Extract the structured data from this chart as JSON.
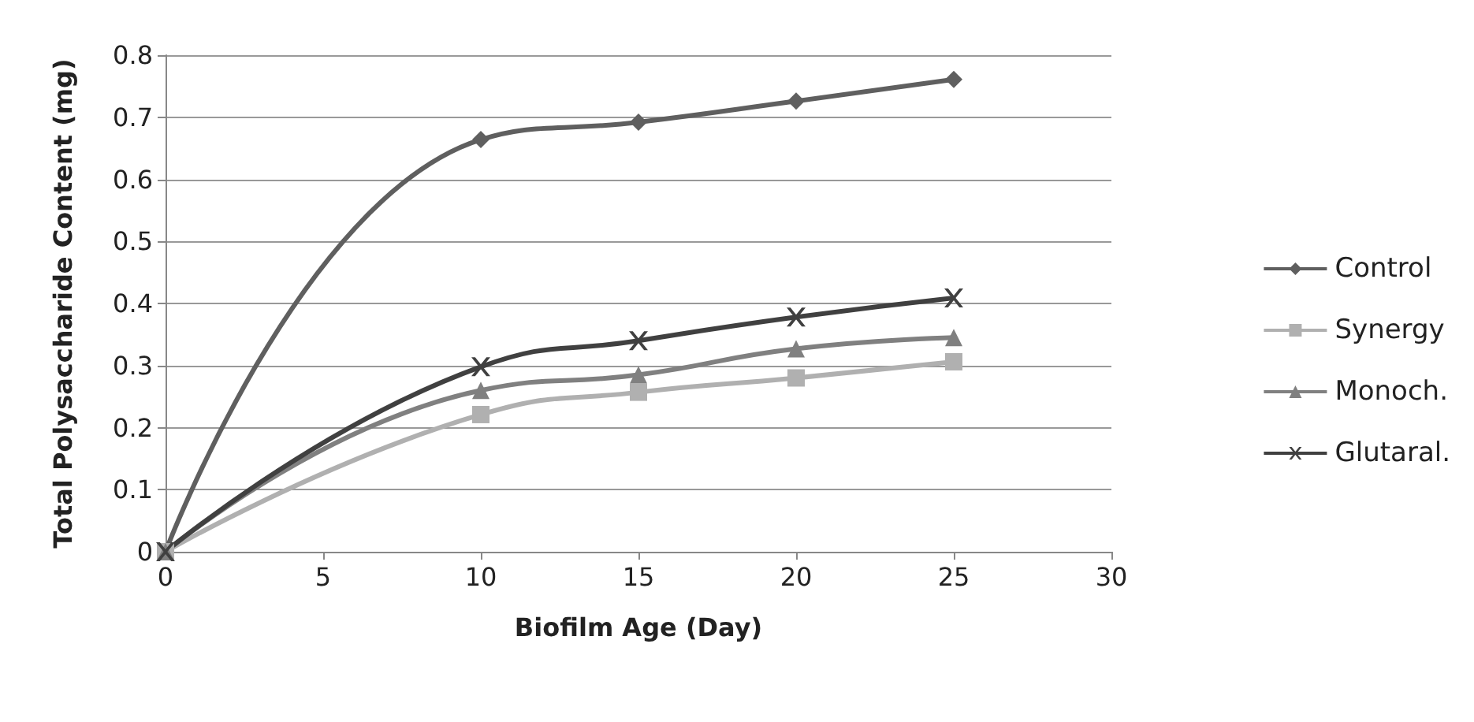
{
  "chart_data": {
    "type": "line",
    "xlabel": "Biofilm Age (Day)",
    "ylabel": "Total Polysaccharide Content (mg)",
    "x": [
      0,
      10,
      15,
      20,
      25
    ],
    "xlim": [
      0,
      30
    ],
    "xticks": [
      0,
      5,
      10,
      15,
      20,
      25,
      30
    ],
    "ylim": [
      0,
      0.8
    ],
    "yticks": [
      0,
      0.1,
      0.2,
      0.3,
      0.4,
      0.5,
      0.6,
      0.7,
      0.8
    ],
    "grid": "y",
    "legend": "right",
    "line_style": "solid",
    "series": [
      {
        "name": "Control",
        "color": "#5f5f5f",
        "marker": "diamond",
        "values": [
          0,
          0.664,
          0.692,
          0.726,
          0.761
        ]
      },
      {
        "name": "Synergy",
        "color": "#b0b0b0",
        "marker": "square",
        "values": [
          0,
          0.221,
          0.257,
          0.28,
          0.306
        ]
      },
      {
        "name": "Monoch.",
        "color": "#808080",
        "marker": "triangle",
        "values": [
          0,
          0.26,
          0.285,
          0.327,
          0.345
        ]
      },
      {
        "name": "Glutaral.",
        "color": "#404040",
        "marker": "cross",
        "values": [
          0,
          0.298,
          0.34,
          0.378,
          0.409
        ]
      }
    ]
  }
}
